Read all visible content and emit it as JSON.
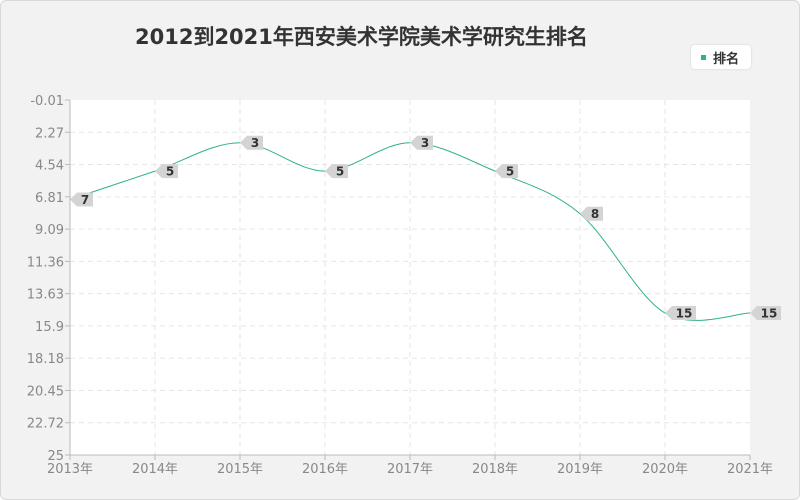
{
  "title": "2012到2021年西安美术学院美术学研究生排名",
  "legend": {
    "label": "排名"
  },
  "colors": {
    "series": "#2fb380",
    "plot_bg": "#ffffff",
    "grid": "#e6e6e6",
    "label_bg": "#d4d4d4"
  },
  "chart_data": {
    "type": "line",
    "title": "2012到2021年西安美术学院美术学研究生排名",
    "x": [
      "2013年",
      "2014年",
      "2015年",
      "2016年",
      "2017年",
      "2018年",
      "2019年",
      "2020年",
      "2021年"
    ],
    "y_ticks": [
      "-0.01",
      "2.27",
      "4.54",
      "6.81",
      "9.09",
      "11.36",
      "13.63",
      "15.9",
      "18.18",
      "20.45",
      "22.72",
      "25"
    ],
    "ylim": [
      -0.01,
      25
    ],
    "y_inverted": true,
    "grid": true,
    "legend_position": "top-right",
    "series": [
      {
        "name": "排名",
        "values": [
          7,
          5,
          3,
          5,
          3,
          5,
          8,
          15,
          15
        ]
      }
    ]
  }
}
